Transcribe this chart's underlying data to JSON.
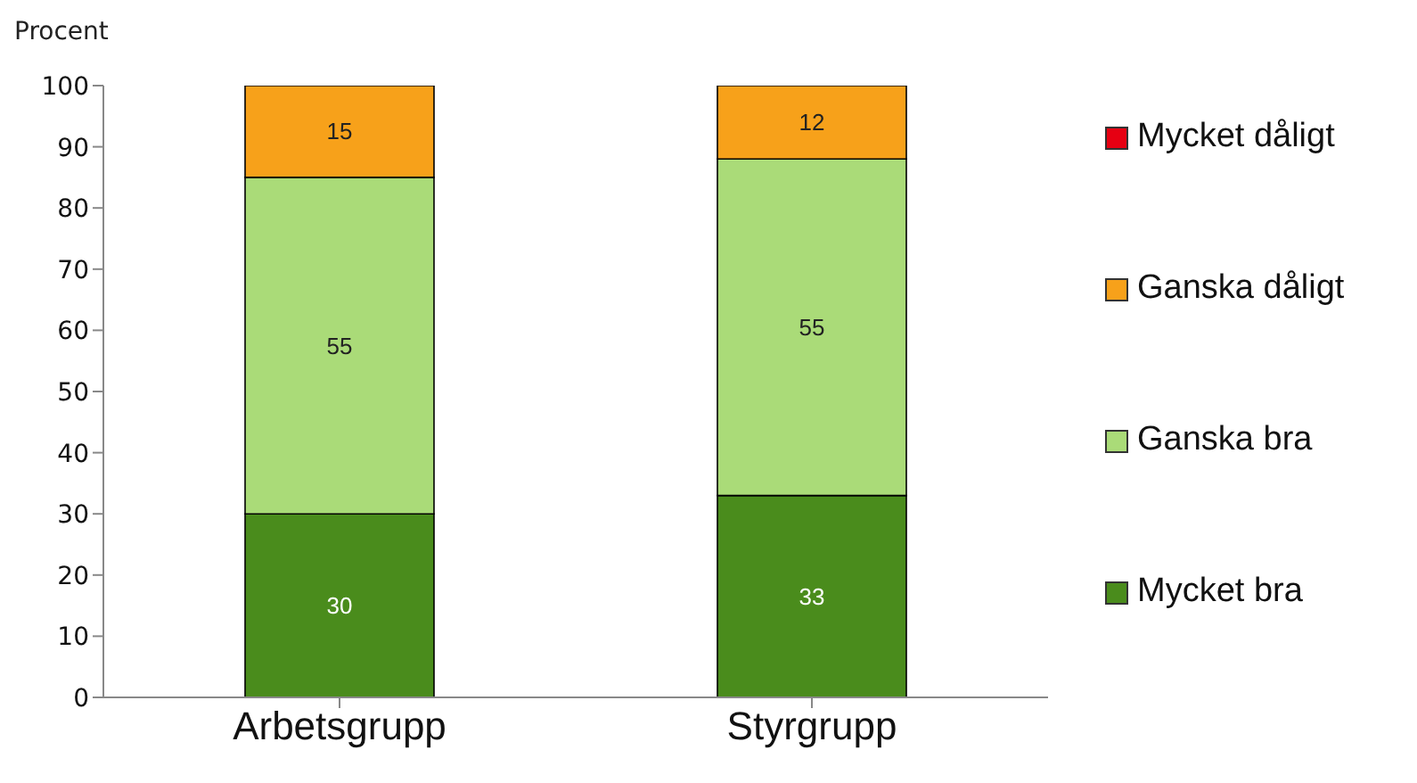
{
  "chart_data": {
    "type": "bar",
    "ylabel": "Procent",
    "categories": [
      "Arbetsgrupp",
      "Styrgrupp"
    ],
    "stacked": true,
    "series": [
      {
        "name": "Mycket bra",
        "color": "#4a8c1c",
        "values": [
          30,
          33
        ],
        "value_labels": [
          "30",
          "33"
        ]
      },
      {
        "name": "Ganska bra",
        "color": "#aadb78",
        "values": [
          55,
          55
        ],
        "value_labels": [
          "55",
          "55"
        ]
      },
      {
        "name": "Ganska dåligt",
        "color": "#f7a11a",
        "values": [
          15,
          12
        ],
        "value_labels": [
          "15",
          "12"
        ]
      },
      {
        "name": "Mycket dåligt",
        "color": "#e60012",
        "values": [
          0,
          0
        ],
        "value_labels": [
          null,
          null
        ]
      }
    ],
    "ylim": [
      0,
      100
    ],
    "yticks": [
      0,
      10,
      20,
      30,
      40,
      50,
      60,
      70,
      80,
      90,
      100
    ],
    "legend": "right"
  }
}
